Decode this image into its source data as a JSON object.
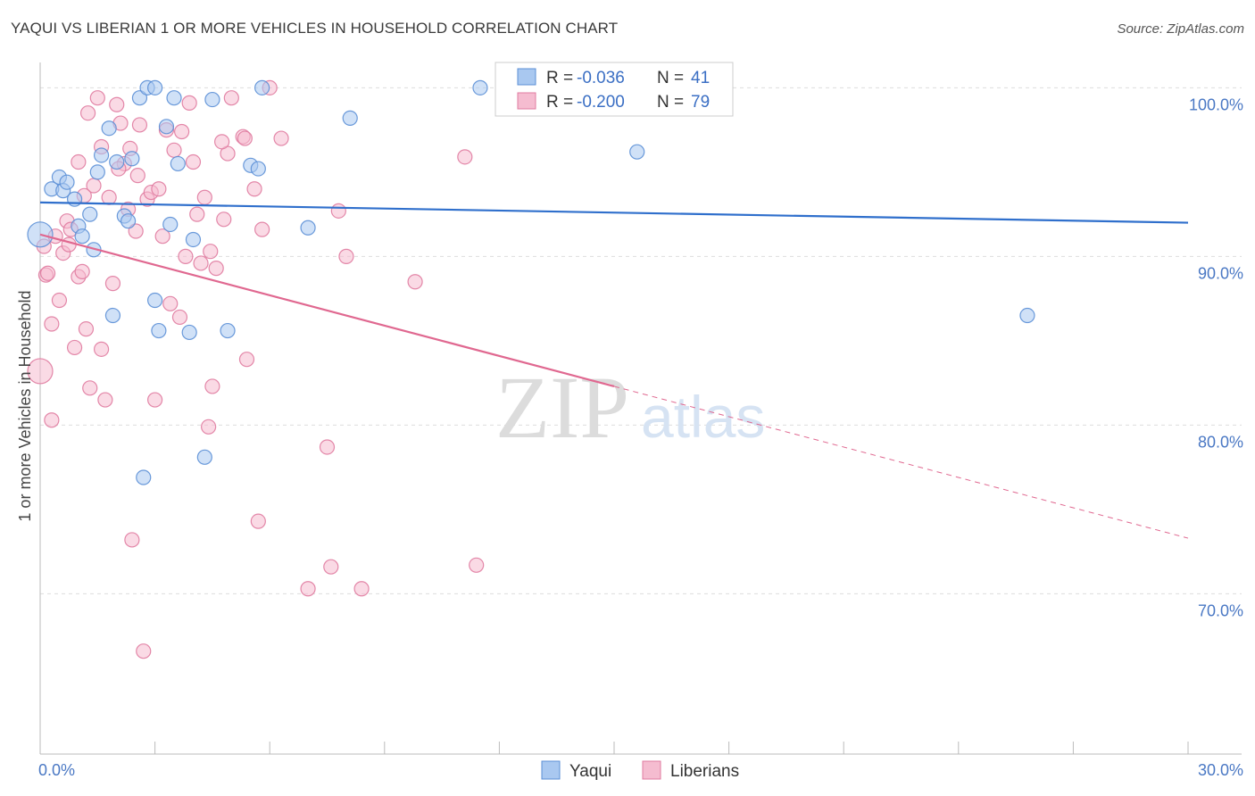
{
  "header": {
    "title": "YAQUI VS LIBERIAN 1 OR MORE VEHICLES IN HOUSEHOLD CORRELATION CHART",
    "source": "Source: ZipAtlas.com"
  },
  "watermark": {
    "zip": "ZIP",
    "atlas": "atlas"
  },
  "colors": {
    "yaqui_fill": "#a9c8f0",
    "yaqui_stroke": "#5b8fd6",
    "yaqui_line": "#2f6fcc",
    "liberian_fill": "#f5bcd0",
    "liberian_stroke": "#e07ba0",
    "liberian_line": "#e06890",
    "grid": "#dddddd",
    "tick_text": "#4a78c4"
  },
  "chart_data": {
    "type": "scatter",
    "title": "YAQUI VS LIBERIAN 1 OR MORE VEHICLES IN HOUSEHOLD CORRELATION CHART",
    "xlabel": "",
    "ylabel": "1 or more Vehicles in Household",
    "xlim": [
      0,
      30
    ],
    "ylim": [
      60.5,
      101.5
    ],
    "x_tick_labels": [
      {
        "value": 0,
        "label": "0.0%"
      },
      {
        "value": 30,
        "label": "30.0%"
      }
    ],
    "y_tick_labels": [
      {
        "value": 100,
        "label": "100.0%"
      },
      {
        "value": 90,
        "label": "90.0%"
      },
      {
        "value": 80,
        "label": "80.0%"
      },
      {
        "value": 70,
        "label": "70.0%"
      }
    ],
    "legend_stats": [
      {
        "series": "Yaqui",
        "r_label": "R = ",
        "r_value": "-0.036",
        "n_label": "N = ",
        "n_value": "41"
      },
      {
        "series": "Liberians",
        "r_label": "R = ",
        "r_value": "-0.200",
        "n_label": "N = ",
        "n_value": "79"
      }
    ],
    "series": [
      {
        "name": "Yaqui",
        "trend": {
          "x0": 0,
          "y0": 93.2,
          "x1": 30,
          "y1": 92.0,
          "solid_until": 30
        },
        "points": [
          [
            0.0,
            91.3
          ],
          [
            0.3,
            94.0
          ],
          [
            0.5,
            94.7
          ],
          [
            0.6,
            93.9
          ],
          [
            0.7,
            94.4
          ],
          [
            0.9,
            93.4
          ],
          [
            1.0,
            91.8
          ],
          [
            1.1,
            91.2
          ],
          [
            1.3,
            92.5
          ],
          [
            1.4,
            90.4
          ],
          [
            1.5,
            95.0
          ],
          [
            1.6,
            96.0
          ],
          [
            1.8,
            97.6
          ],
          [
            1.9,
            86.5
          ],
          [
            2.0,
            95.6
          ],
          [
            2.2,
            92.4
          ],
          [
            2.3,
            92.1
          ],
          [
            2.4,
            95.8
          ],
          [
            2.6,
            99.4
          ],
          [
            2.7,
            76.9
          ],
          [
            2.8,
            100.0
          ],
          [
            3.0,
            87.4
          ],
          [
            3.0,
            100.0
          ],
          [
            3.1,
            85.6
          ],
          [
            3.3,
            97.7
          ],
          [
            3.5,
            99.4
          ],
          [
            3.6,
            95.5
          ],
          [
            3.9,
            85.5
          ],
          [
            4.0,
            91.0
          ],
          [
            4.3,
            78.1
          ],
          [
            4.5,
            99.3
          ],
          [
            4.9,
            85.6
          ],
          [
            5.5,
            95.4
          ],
          [
            5.7,
            95.2
          ],
          [
            5.8,
            100.0
          ],
          [
            7.0,
            91.7
          ],
          [
            8.1,
            98.2
          ],
          [
            11.5,
            100.0
          ],
          [
            15.6,
            96.2
          ],
          [
            25.8,
            86.5
          ],
          [
            3.4,
            91.9
          ]
        ]
      },
      {
        "name": "Liberians",
        "trend": {
          "x0": 0,
          "y0": 91.3,
          "x1": 30,
          "y1": 73.3,
          "solid_until": 15.0
        },
        "points": [
          [
            0.0,
            83.2
          ],
          [
            0.1,
            90.6
          ],
          [
            0.15,
            88.9
          ],
          [
            0.2,
            89.0
          ],
          [
            0.3,
            86.0
          ],
          [
            0.3,
            80.3
          ],
          [
            0.4,
            91.2
          ],
          [
            0.5,
            87.4
          ],
          [
            0.6,
            90.2
          ],
          [
            0.7,
            92.1
          ],
          [
            0.8,
            91.6
          ],
          [
            0.9,
            84.6
          ],
          [
            1.0,
            88.8
          ],
          [
            1.0,
            95.6
          ],
          [
            1.1,
            89.1
          ],
          [
            1.2,
            85.7
          ],
          [
            1.3,
            82.2
          ],
          [
            1.4,
            94.2
          ],
          [
            1.5,
            99.4
          ],
          [
            1.6,
            84.5
          ],
          [
            1.7,
            81.5
          ],
          [
            1.8,
            93.5
          ],
          [
            1.9,
            88.4
          ],
          [
            2.0,
            99.0
          ],
          [
            2.1,
            97.9
          ],
          [
            2.2,
            95.5
          ],
          [
            2.3,
            92.8
          ],
          [
            2.4,
            73.2
          ],
          [
            2.5,
            91.5
          ],
          [
            2.6,
            97.8
          ],
          [
            2.7,
            66.6
          ],
          [
            2.8,
            93.4
          ],
          [
            2.9,
            93.8
          ],
          [
            3.0,
            81.5
          ],
          [
            3.1,
            94.0
          ],
          [
            3.2,
            91.2
          ],
          [
            3.3,
            97.5
          ],
          [
            3.4,
            87.2
          ],
          [
            3.5,
            96.3
          ],
          [
            3.7,
            97.4
          ],
          [
            3.8,
            90.0
          ],
          [
            3.9,
            99.1
          ],
          [
            4.0,
            95.6
          ],
          [
            4.1,
            92.5
          ],
          [
            4.2,
            89.6
          ],
          [
            4.3,
            93.5
          ],
          [
            4.4,
            79.9
          ],
          [
            4.5,
            82.3
          ],
          [
            4.6,
            89.3
          ],
          [
            4.8,
            92.2
          ],
          [
            4.9,
            96.1
          ],
          [
            5.0,
            99.4
          ],
          [
            5.3,
            97.1
          ],
          [
            5.4,
            83.9
          ],
          [
            5.6,
            94.0
          ],
          [
            5.7,
            74.3
          ],
          [
            5.8,
            91.6
          ],
          [
            6.0,
            100.0
          ],
          [
            6.3,
            97.0
          ],
          [
            7.0,
            70.3
          ],
          [
            7.5,
            78.7
          ],
          [
            7.6,
            71.6
          ],
          [
            7.8,
            92.7
          ],
          [
            8.0,
            90.0
          ],
          [
            8.4,
            70.3
          ],
          [
            9.8,
            88.5
          ],
          [
            11.1,
            95.9
          ],
          [
            11.4,
            71.7
          ],
          [
            1.25,
            98.5
          ],
          [
            1.6,
            96.5
          ],
          [
            2.05,
            95.2
          ],
          [
            2.35,
            96.4
          ],
          [
            1.15,
            93.6
          ],
          [
            0.75,
            90.7
          ],
          [
            4.45,
            90.3
          ],
          [
            3.65,
            86.4
          ],
          [
            5.35,
            97.0
          ],
          [
            2.55,
            94.8
          ],
          [
            4.75,
            96.8
          ]
        ]
      }
    ],
    "bottom_legend": [
      "Yaqui",
      "Liberians"
    ]
  }
}
